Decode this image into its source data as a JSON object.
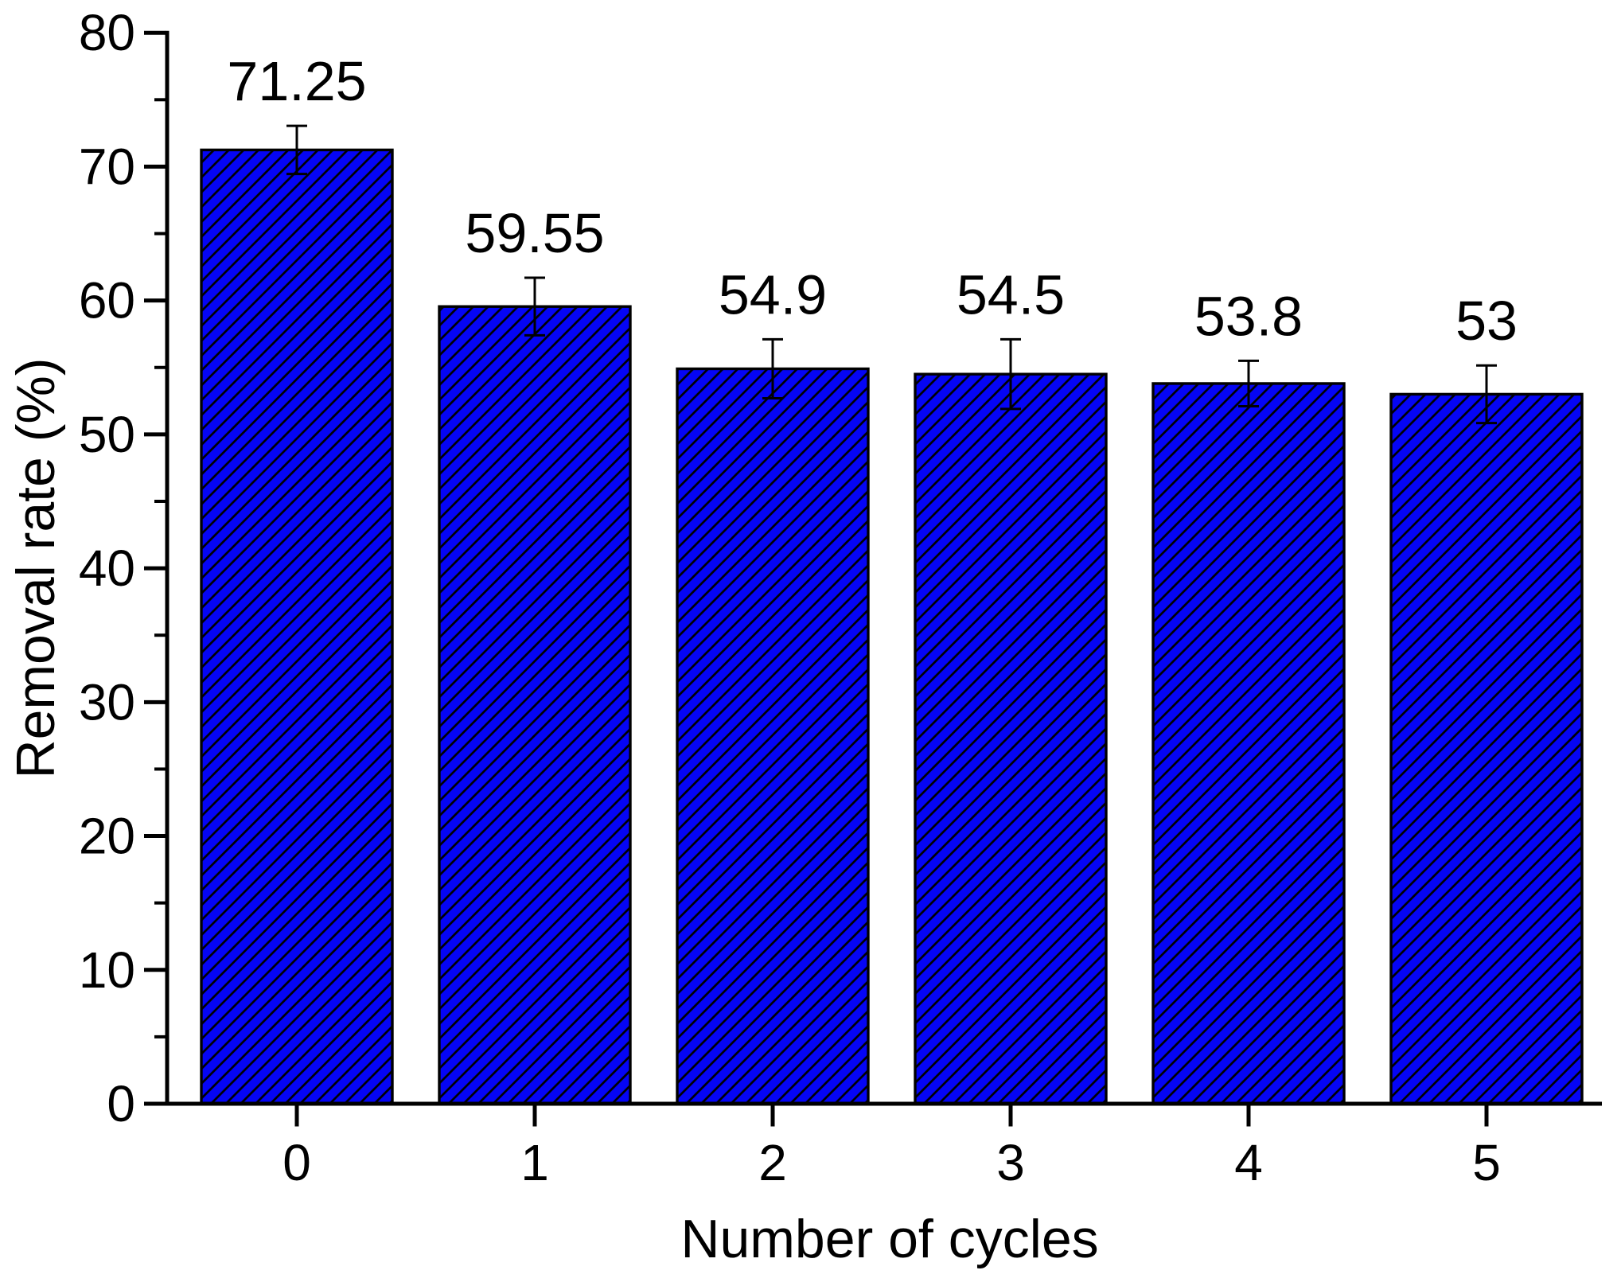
{
  "chart_data": {
    "type": "bar",
    "title": "",
    "xlabel": "Number of cycles",
    "ylabel": "Removal rate (%)",
    "categories": [
      "0",
      "1",
      "2",
      "3",
      "4",
      "5"
    ],
    "values": [
      71.25,
      59.55,
      54.9,
      54.5,
      53.8,
      53
    ],
    "value_labels": [
      "71.25",
      "59.55",
      "54.9",
      "54.5",
      "53.8",
      "53"
    ],
    "error_bars": [
      1.8,
      2.15,
      2.2,
      2.6,
      1.7,
      2.15
    ],
    "ylim": [
      0,
      80
    ],
    "ytick_labels": [
      "0",
      "10",
      "20",
      "30",
      "40",
      "50",
      "60",
      "70",
      "80"
    ],
    "ytick_interval": 10,
    "ytick_minor_interval": 5,
    "grid": false,
    "legend": "none",
    "bar_hatch_style": "diagonal-forward-slash",
    "colors": {
      "bar_fill": "#0505F5",
      "bar_hatch_lines": "#000000",
      "bar_outline": "#000000",
      "axis": "#000000",
      "text": "#000000",
      "background": "#FFFFFF"
    }
  }
}
